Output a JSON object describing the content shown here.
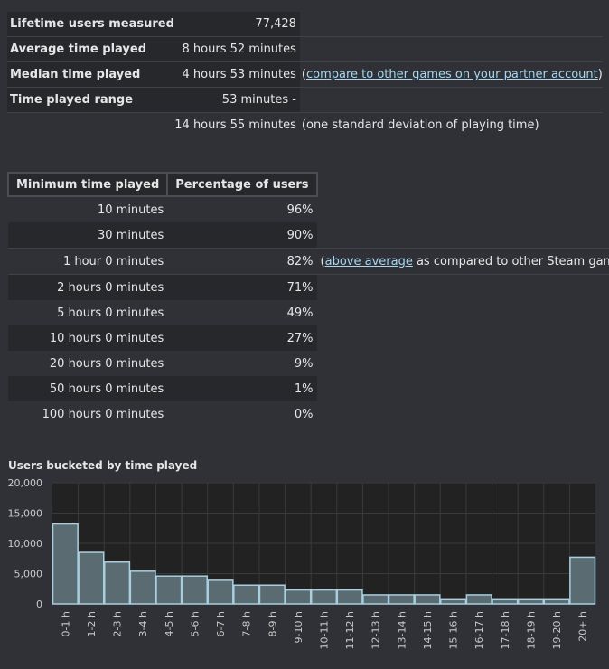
{
  "summary": [
    {
      "label": "Lifetime users measured",
      "value": "77,428",
      "note": null
    },
    {
      "label": "Average time played",
      "value": "8 hours 52 minutes",
      "note": null
    },
    {
      "label": "Median time played",
      "value": "4 hours 53 minutes",
      "note_prefix": "(",
      "note_link": "compare to other games on your partner account",
      "note_suffix": ")"
    },
    {
      "label": "Time played range",
      "value": "53 minutes -",
      "note": null
    },
    {
      "label": "",
      "value": "14 hours 55 minutes",
      "note": "(one standard deviation of playing time)"
    }
  ],
  "pct_table": {
    "headers": [
      "Minimum time played",
      "Percentage of users"
    ],
    "rows": [
      {
        "time": "10 minutes",
        "pct": "96%"
      },
      {
        "time": "30 minutes",
        "pct": "90%"
      },
      {
        "time": "1 hour 0 minutes",
        "pct": "82%",
        "note_prefix": "(",
        "note_link": "above average",
        "note_suffix": " as compared to other Steam games)"
      },
      {
        "time": "2 hours 0 minutes",
        "pct": "71%"
      },
      {
        "time": "5 hours 0 minutes",
        "pct": "49%"
      },
      {
        "time": "10 hours 0 minutes",
        "pct": "27%"
      },
      {
        "time": "20 hours 0 minutes",
        "pct": "9%"
      },
      {
        "time": "50 hours 0 minutes",
        "pct": "1%"
      },
      {
        "time": "100 hours 0 minutes",
        "pct": "0%"
      }
    ]
  },
  "chart_data": {
    "type": "bar",
    "title": "Users bucketed by time played",
    "xlabel": "",
    "ylabel": "",
    "categories": [
      "0-1 h",
      "1-2 h",
      "2-3 h",
      "3-4 h",
      "4-5 h",
      "5-6 h",
      "6-7 h",
      "7-8 h",
      "8-9 h",
      "9-10 h",
      "10-11 h",
      "11-12 h",
      "12-13 h",
      "13-14 h",
      "14-15 h",
      "15-16 h",
      "16-17 h",
      "17-18 h",
      "18-19 h",
      "19-20 h",
      "20+ h"
    ],
    "values": [
      13200,
      8500,
      6900,
      5400,
      4600,
      4600,
      3900,
      3100,
      3100,
      2300,
      2300,
      2300,
      1500,
      1500,
      1500,
      700,
      1500,
      700,
      700,
      700,
      7700
    ],
    "ylim": [
      0,
      20000
    ],
    "yticks": [
      "20,000",
      "15,000",
      "10,000",
      "5,000",
      "0"
    ],
    "ytick_values": [
      20000,
      15000,
      10000,
      5000,
      0
    ],
    "grid": true,
    "colors": {
      "bar_fill": "#5a6b72",
      "bar_stroke": "#a8cfe0",
      "plot_bg": "#222222",
      "grid": "#3a3a3a"
    }
  }
}
